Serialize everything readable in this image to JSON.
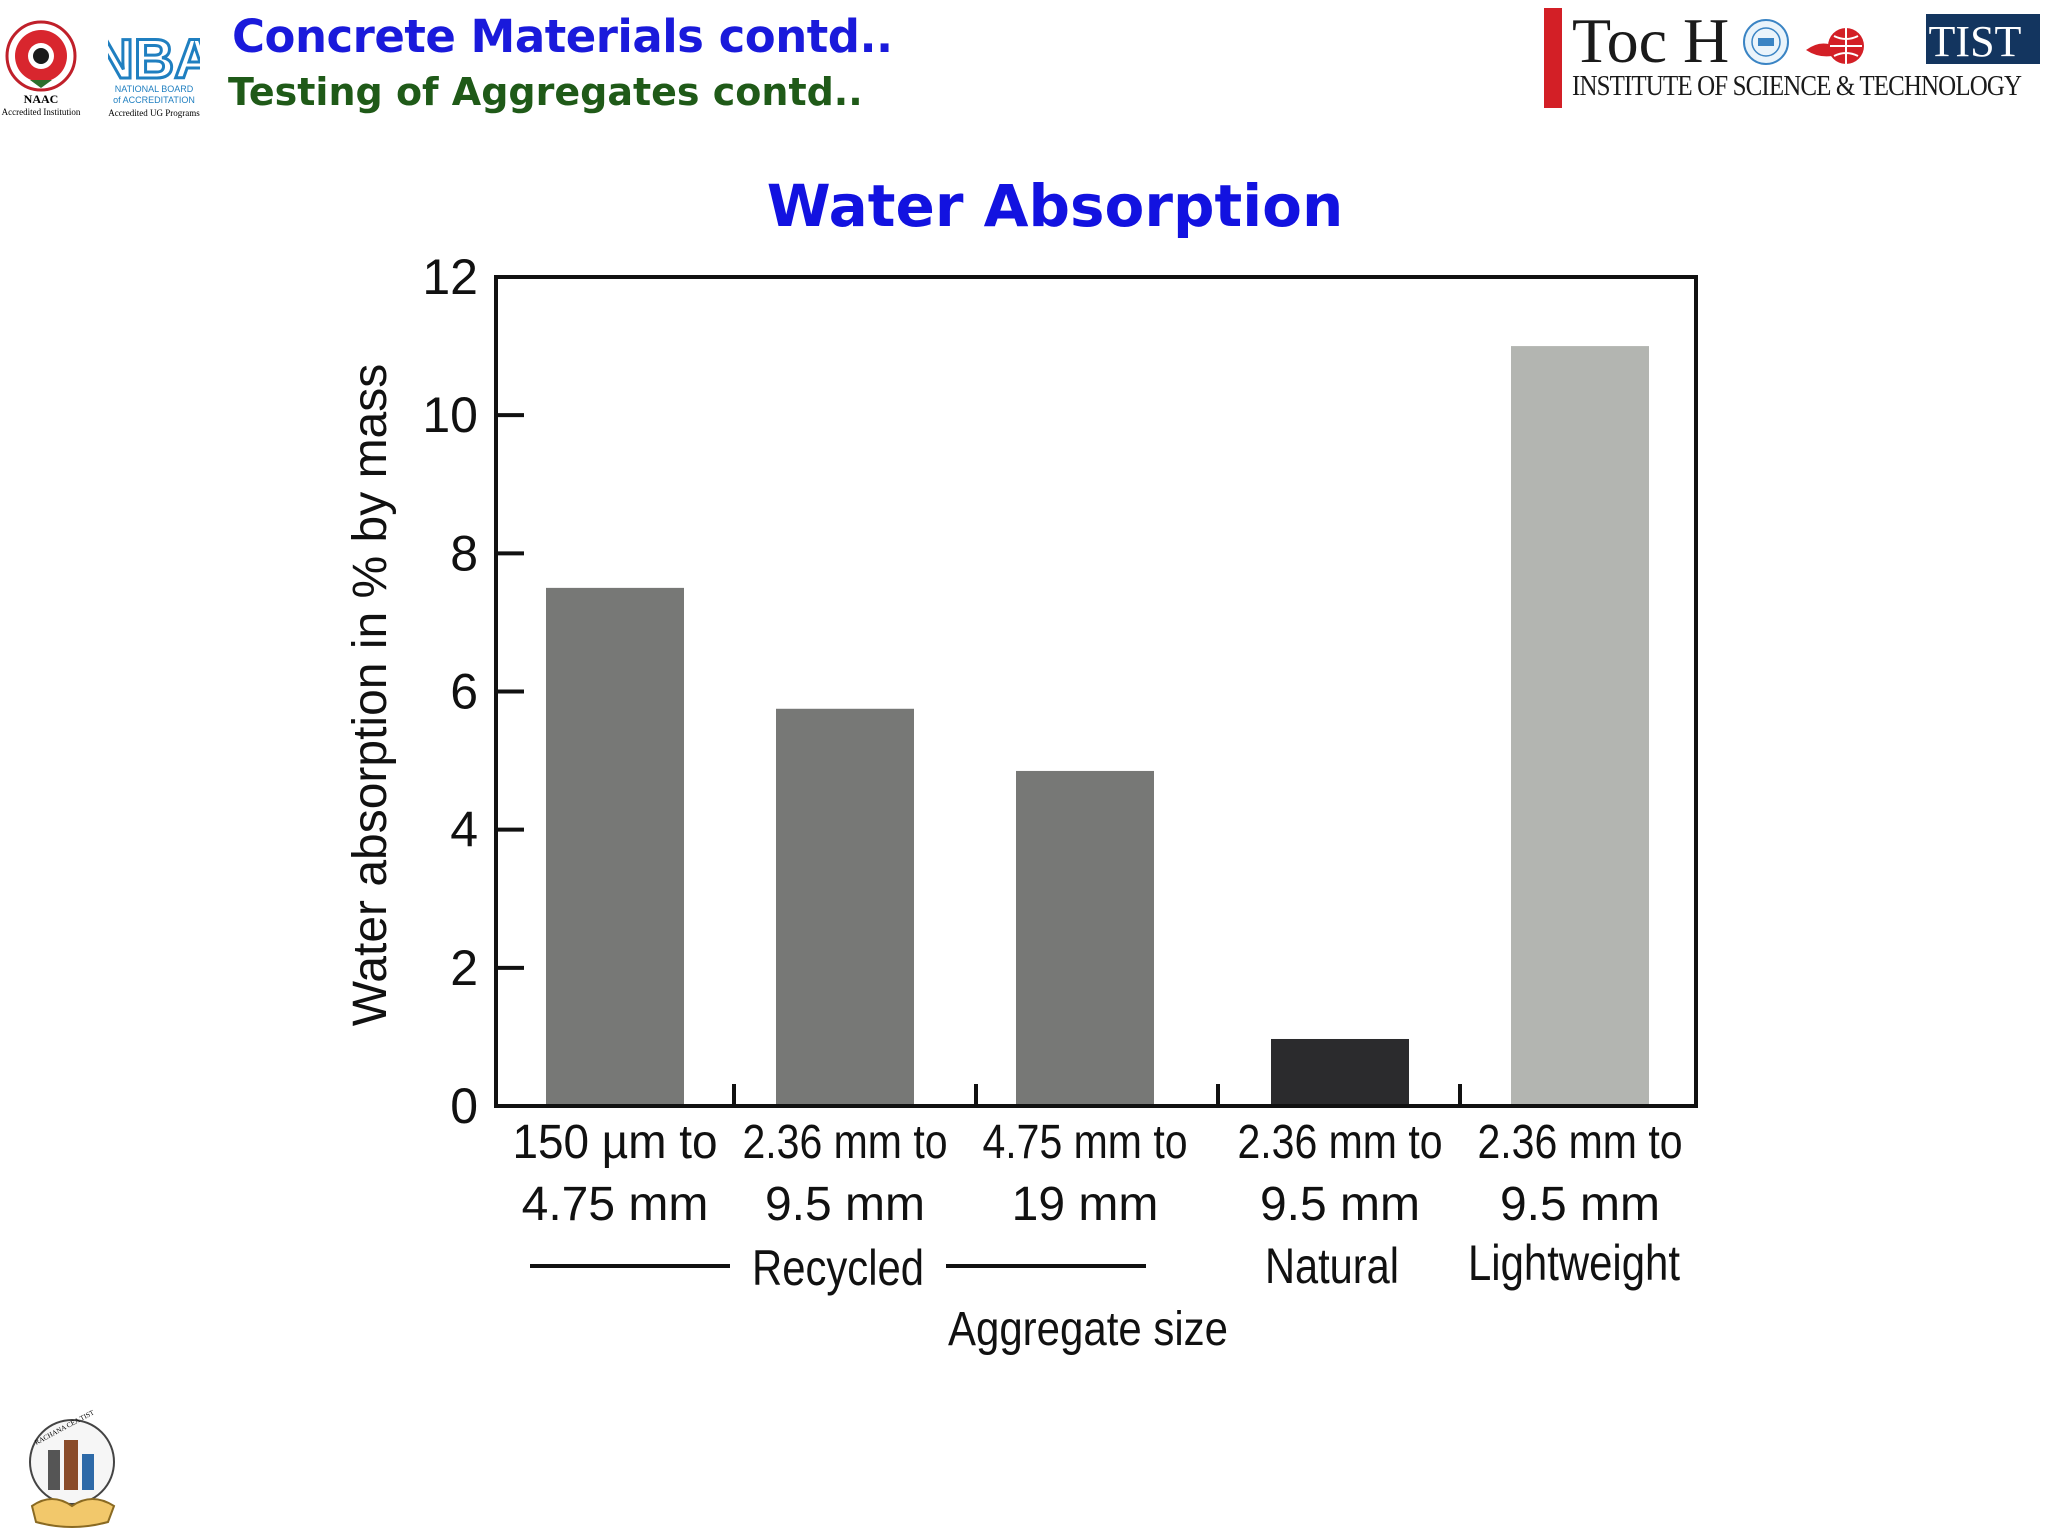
{
  "header": {
    "title": "Concrete Materials contd..",
    "subtitle": "Testing of Aggregates contd..",
    "naac_label": "NAAC",
    "naac_caption": "Accredited Institution",
    "nba_line1": "NATIONAL BOARD",
    "nba_line2": "of ACCREDITATION",
    "nba_caption": "Accredited UG Programs",
    "toch_label": "Toc H",
    "tist_badge": "TIST",
    "institute_name": "INSTITUTE OF SCIENCE & TECHNOLOGY"
  },
  "slide": {
    "title": "Water Absorption"
  },
  "footer": {
    "logo_text": "RACHANA CEA TIST"
  },
  "colors": {
    "recycled": "#777876",
    "natural": "#2b2b2d",
    "lightweight": "#b3b5b1",
    "title_blue": "#1212e0",
    "subtitle_green": "#1f5a18",
    "toch_red": "#d31f26",
    "tist_navy": "#13355f"
  },
  "chart_data": {
    "type": "bar",
    "title": "",
    "ylabel": "Water absorption in % by mass",
    "xlabel": "Aggregate size",
    "ylim": [
      0,
      12
    ],
    "yticks": [
      0,
      2,
      4,
      6,
      8,
      10,
      12
    ],
    "categories": [
      {
        "line1": "150 µm to",
        "line2": "4.75 mm",
        "group": "Recycled"
      },
      {
        "line1": "2.36 mm to",
        "line2": "9.5 mm",
        "group": "Recycled"
      },
      {
        "line1": "4.75 mm to",
        "line2": "19 mm",
        "group": "Recycled"
      },
      {
        "line1": "2.36 mm to",
        "line2": "9.5 mm",
        "group": "Natural"
      },
      {
        "line1": "2.36 mm to",
        "line2": "9.5 mm",
        "group": "Lightweight"
      }
    ],
    "values": [
      7.5,
      5.75,
      4.85,
      0.97,
      11.0
    ],
    "groups": [
      "Recycled",
      "Natural",
      "Lightweight"
    ],
    "grid": false
  }
}
